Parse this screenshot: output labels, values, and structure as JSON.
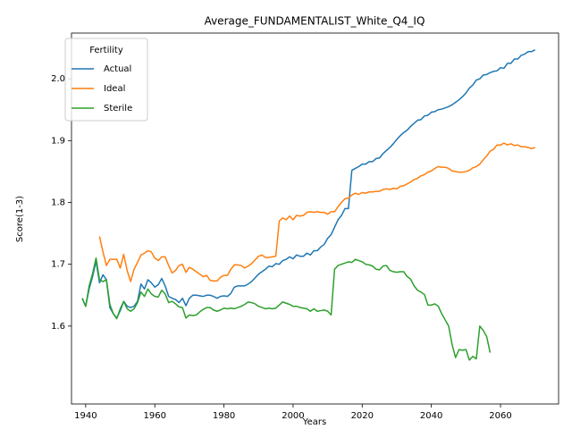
{
  "chart_data": {
    "type": "line",
    "title": "Average_FUNDAMENTALIST_White_Q4_IQ",
    "x_label": "Years",
    "y_label": "Score(1-3)",
    "legend_title": "Fertility",
    "legend_position": "upper left",
    "grid": false,
    "xlim": [
      1935.9,
      2076.8
    ],
    "ylim": [
      1.474,
      2.074
    ],
    "xticks": [
      1940,
      1960,
      1980,
      2000,
      2020,
      2040,
      2060
    ],
    "yticks": [
      1.6,
      1.7,
      1.8,
      1.9,
      {
        "value": 2,
        "label": "2.0"
      }
    ],
    "x": [
      1939,
      1940,
      1941,
      1942,
      1943,
      1944,
      1945,
      1946,
      1947,
      1948,
      1949,
      1950,
      1951,
      1952,
      1953,
      1954,
      1955,
      1956,
      1957,
      1958,
      1959,
      1960,
      1961,
      1962,
      1963,
      1964,
      1965,
      1966,
      1967,
      1968,
      1969,
      1970,
      1971,
      1972,
      1973,
      1974,
      1975,
      1976,
      1977,
      1978,
      1979,
      1980,
      1981,
      1982,
      1983,
      1984,
      1985,
      1986,
      1987,
      1988,
      1989,
      1990,
      1991,
      1992,
      1993,
      1994,
      1995,
      1996,
      1997,
      1998,
      1999,
      2000,
      2001,
      2002,
      2003,
      2004,
      2005,
      2006,
      2007,
      2008,
      2009,
      2010,
      2011,
      2012,
      2013,
      2014,
      2015,
      2016,
      2017,
      2018,
      2019,
      2020,
      2021,
      2022,
      2023,
      2024,
      2025,
      2026,
      2027,
      2028,
      2029,
      2030,
      2031,
      2032,
      2033,
      2034,
      2035,
      2036,
      2037,
      2038,
      2039,
      2040,
      2041,
      2042,
      2043,
      2044,
      2045,
      2046,
      2047,
      2048,
      2049,
      2050,
      2051,
      2052,
      2053,
      2054,
      2055,
      2056,
      2057,
      2058,
      2059,
      2060,
      2061,
      2062,
      2063,
      2064,
      2065,
      2066,
      2067,
      2068,
      2069,
      2070
    ],
    "series": [
      {
        "name": "Actual",
        "color": "#1f77b4",
        "values": [
          1.645,
          1.632,
          1.66,
          1.68,
          1.705,
          1.67,
          1.683,
          1.675,
          1.63,
          1.62,
          1.613,
          1.625,
          1.64,
          1.632,
          1.63,
          1.632,
          1.64,
          1.668,
          1.66,
          1.675,
          1.67,
          1.663,
          1.667,
          1.677,
          1.665,
          1.648,
          1.645,
          1.643,
          1.638,
          1.645,
          1.633,
          1.645,
          1.65,
          1.65,
          1.649,
          1.648,
          1.65,
          1.65,
          1.648,
          1.645,
          1.648,
          1.649,
          1.648,
          1.653,
          1.663,
          1.665,
          1.665,
          1.665,
          1.668,
          1.672,
          1.678,
          1.684,
          1.688,
          1.692,
          1.697,
          1.696,
          1.701,
          1.7,
          1.706,
          1.708,
          1.712,
          1.709,
          1.715,
          1.713,
          1.713,
          1.718,
          1.715,
          1.722,
          1.722,
          1.728,
          1.732,
          1.742,
          1.748,
          1.76,
          1.772,
          1.779,
          1.79,
          1.79,
          1.852,
          1.855,
          1.858,
          1.862,
          1.862,
          1.866,
          1.866,
          1.871,
          1.872,
          1.879,
          1.884,
          1.889,
          1.895,
          1.902,
          1.908,
          1.913,
          1.917,
          1.923,
          1.928,
          1.933,
          1.934,
          1.94,
          1.941,
          1.946,
          1.947,
          1.95,
          1.951,
          1.953,
          1.955,
          1.958,
          1.962,
          1.966,
          1.971,
          1.977,
          1.985,
          1.99,
          1.998,
          2.0,
          2.006,
          2.007,
          2.01,
          2.012,
          2.013,
          2.018,
          2.017,
          2.025,
          2.025,
          2.032,
          2.032,
          2.038,
          2.04,
          2.044,
          2.044,
          2.047
        ]
      },
      {
        "name": "Ideal",
        "color": "#ff7f0e",
        "values": [
          null,
          null,
          null,
          null,
          null,
          1.745,
          1.72,
          1.698,
          1.708,
          1.708,
          1.708,
          1.694,
          1.716,
          1.69,
          1.672,
          1.692,
          1.703,
          1.715,
          1.718,
          1.722,
          1.72,
          1.71,
          1.706,
          1.712,
          1.712,
          1.698,
          1.686,
          1.69,
          1.698,
          1.7,
          1.687,
          1.695,
          1.692,
          1.688,
          1.684,
          1.68,
          1.682,
          1.674,
          1.673,
          1.673,
          1.679,
          1.682,
          1.682,
          1.692,
          1.699,
          1.699,
          1.698,
          1.694,
          1.697,
          1.701,
          1.707,
          1.713,
          1.715,
          1.711,
          1.711,
          1.712,
          1.713,
          1.77,
          1.775,
          1.772,
          1.778,
          1.772,
          1.779,
          1.778,
          1.779,
          1.784,
          1.785,
          1.784,
          1.785,
          1.784,
          1.784,
          1.781,
          1.785,
          1.785,
          1.793,
          1.8,
          1.806,
          1.807,
          1.812,
          1.815,
          1.813,
          1.816,
          1.815,
          1.817,
          1.817,
          1.818,
          1.818,
          1.821,
          1.822,
          1.821,
          1.823,
          1.822,
          1.826,
          1.827,
          1.83,
          1.833,
          1.837,
          1.839,
          1.843,
          1.845,
          1.849,
          1.851,
          1.855,
          1.858,
          1.857,
          1.857,
          1.855,
          1.851,
          1.85,
          1.849,
          1.849,
          1.85,
          1.852,
          1.856,
          1.858,
          1.862,
          1.869,
          1.875,
          1.883,
          1.886,
          1.893,
          1.893,
          1.896,
          1.893,
          1.895,
          1.892,
          1.893,
          1.89,
          1.89,
          1.889,
          1.887,
          1.889
        ]
      },
      {
        "name": "Sterile",
        "color": "#2ca02c",
        "values": [
          1.645,
          1.632,
          1.665,
          1.685,
          1.71,
          1.675,
          1.672,
          1.675,
          1.635,
          1.62,
          1.612,
          1.628,
          1.64,
          1.628,
          1.624,
          1.628,
          1.638,
          1.655,
          1.648,
          1.66,
          1.652,
          1.648,
          1.647,
          1.658,
          1.652,
          1.638,
          1.64,
          1.636,
          1.631,
          1.63,
          1.613,
          1.618,
          1.617,
          1.618,
          1.623,
          1.627,
          1.63,
          1.63,
          1.626,
          1.624,
          1.626,
          1.629,
          1.628,
          1.629,
          1.628,
          1.63,
          1.632,
          1.635,
          1.639,
          1.638,
          1.636,
          1.632,
          1.63,
          1.628,
          1.629,
          1.628,
          1.629,
          1.634,
          1.639,
          1.637,
          1.635,
          1.632,
          1.632,
          1.63,
          1.629,
          1.628,
          1.624,
          1.628,
          1.624,
          1.625,
          1.626,
          1.624,
          1.618,
          1.692,
          1.698,
          1.7,
          1.702,
          1.704,
          1.703,
          1.708,
          1.706,
          1.704,
          1.7,
          1.699,
          1.697,
          1.692,
          1.691,
          1.697,
          1.698,
          1.69,
          1.688,
          1.687,
          1.688,
          1.688,
          1.68,
          1.676,
          1.665,
          1.658,
          1.655,
          1.651,
          1.634,
          1.634,
          1.636,
          1.632,
          1.62,
          1.61,
          1.6,
          1.57,
          1.549,
          1.562,
          1.561,
          1.562,
          1.545,
          1.551,
          1.547,
          1.6,
          1.593,
          1.583,
          1.557,
          null,
          null,
          null,
          null,
          null,
          null,
          null,
          null,
          null,
          null,
          null,
          null,
          null
        ]
      }
    ]
  }
}
